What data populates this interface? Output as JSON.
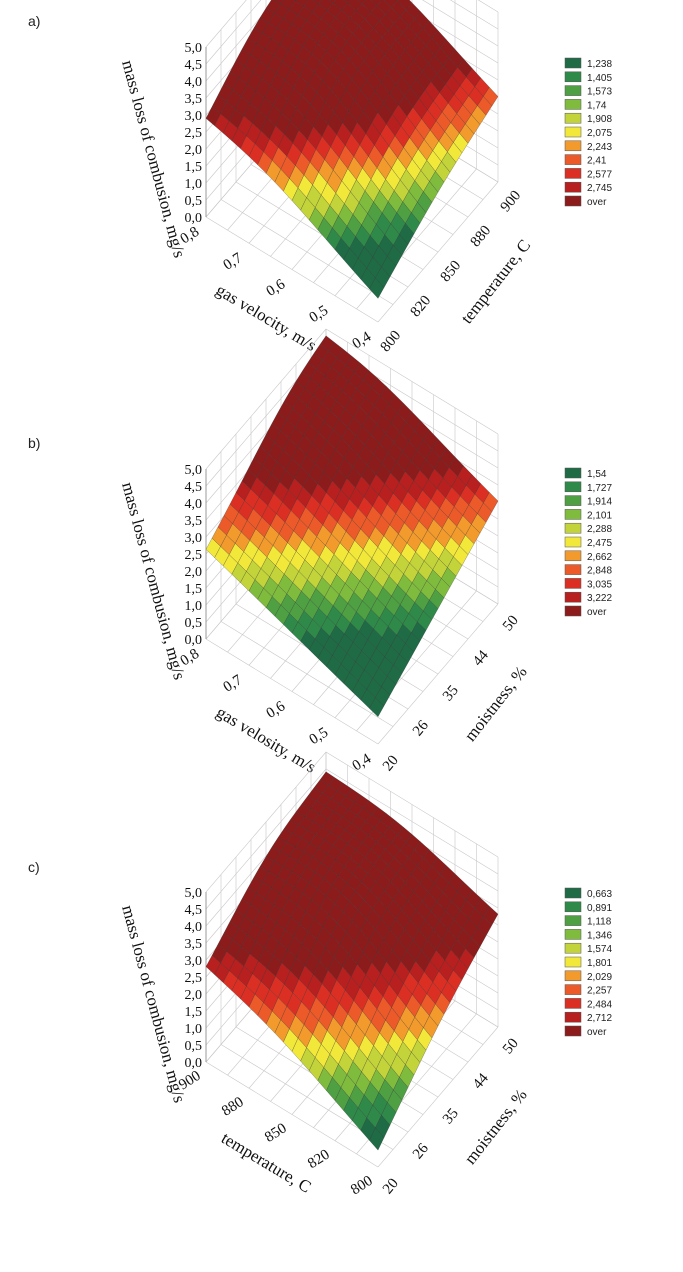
{
  "figure": {
    "panel_labels": [
      "a)",
      "b)",
      "c)"
    ]
  },
  "chart_data": [
    {
      "type": "surface3d",
      "panel": "a)",
      "zlabel": "mass loss of combusion, mg/s",
      "xlabel": "gas velocity, m/s",
      "ylabel": "temperature, C",
      "x_ticks": [
        "0,8",
        "0,7",
        "0,6",
        "0,5",
        "0,4"
      ],
      "y_ticks": [
        "800",
        "820",
        "850",
        "880",
        "900"
      ],
      "z_ticks": [
        "0,0",
        "0,5",
        "1,0",
        "1,5",
        "2,0",
        "2,5",
        "3,0",
        "3,5",
        "4,0",
        "4,5",
        "5,0"
      ],
      "xlim": [
        0.4,
        0.8
      ],
      "ylim": [
        800,
        900
      ],
      "zlim": [
        0,
        5
      ],
      "legend": [
        "1,238",
        "1,405",
        "1,573",
        "1,74",
        "1,908",
        "2,075",
        "2,243",
        "2,41",
        "2,577",
        "2,745",
        "over"
      ],
      "legend_colors": [
        "#1e6b45",
        "#2f8a4a",
        "#4ea043",
        "#7fbc3e",
        "#c2d43a",
        "#f2e83a",
        "#f39a2d",
        "#ec5a2a",
        "#dc2f24",
        "#b81f1f",
        "#8c1c1c"
      ],
      "surface_corners": {
        "x0.8_y800": 2.6,
        "x0.4_y800": 0.6,
        "x0.8_y900": 4.2,
        "x0.4_y900": 2.4
      },
      "surface_peak": {
        "x": 0.7,
        "y": 860,
        "z": 5.0
      }
    },
    {
      "type": "surface3d",
      "panel": "b)",
      "zlabel": "mass loss of combusion, mg/s",
      "xlabel": "gas velosity, m/s",
      "ylabel": "moistness, %",
      "x_ticks": [
        "0,8",
        "0,7",
        "0,6",
        "0,5",
        "0,4"
      ],
      "y_ticks": [
        "20",
        "26",
        "35",
        "44",
        "50"
      ],
      "z_ticks": [
        "0,0",
        "0,5",
        "1,0",
        "1,5",
        "2,0",
        "2,5",
        "3,0",
        "3,5",
        "4,0",
        "4,5",
        "5,0"
      ],
      "xlim": [
        0.4,
        0.8
      ],
      "ylim": [
        20,
        50
      ],
      "zlim": [
        0,
        5
      ],
      "legend": [
        "1,54",
        "1,727",
        "1,914",
        "2,101",
        "2,288",
        "2,475",
        "2,662",
        "2,848",
        "3,035",
        "3,222",
        "over"
      ],
      "legend_colors": [
        "#1e6b45",
        "#2f8a4a",
        "#4ea043",
        "#7fbc3e",
        "#c2d43a",
        "#f2e83a",
        "#f39a2d",
        "#ec5a2a",
        "#dc2f24",
        "#b81f1f",
        "#8c1c1c"
      ],
      "surface_corners": {
        "x0.8_y20": 2.6,
        "x0.4_y20": 0.8,
        "x0.8_y50": 4.8,
        "x0.4_y50": 3.0
      },
      "surface_peak": {
        "x": 0.8,
        "y": 50,
        "z": 4.8
      }
    },
    {
      "type": "surface3d",
      "panel": "c)",
      "zlabel": "mass loss of combusion, mg/s",
      "xlabel": "temperature, C",
      "ylabel": "moistness, %",
      "x_ticks": [
        "900",
        "880",
        "850",
        "820",
        "800"
      ],
      "y_ticks": [
        "20",
        "26",
        "35",
        "44",
        "50"
      ],
      "z_ticks": [
        "0,0",
        "0,5",
        "1,0",
        "1,5",
        "2,0",
        "2,5",
        "3,0",
        "3,5",
        "4,0",
        "4,5",
        "5,0"
      ],
      "xlim": [
        800,
        900
      ],
      "ylim": [
        20,
        50
      ],
      "zlim": [
        0,
        5
      ],
      "legend": [
        "0,663",
        "0,891",
        "1,118",
        "1,346",
        "1,574",
        "1,801",
        "2,029",
        "2,257",
        "2,484",
        "2,712",
        "over"
      ],
      "legend_colors": [
        "#1e6b45",
        "#2f8a4a",
        "#4ea043",
        "#7fbc3e",
        "#c2d43a",
        "#f2e83a",
        "#f39a2d",
        "#ec5a2a",
        "#dc2f24",
        "#b81f1f",
        "#8c1c1c"
      ],
      "surface_corners": {
        "x900_y20": 2.6,
        "x800_y20": 0.4,
        "x900_y50": 4.2,
        "x800_y50": 3.2
      },
      "surface_peak": {
        "x": 870,
        "y": 40,
        "z": 5.0
      }
    }
  ]
}
